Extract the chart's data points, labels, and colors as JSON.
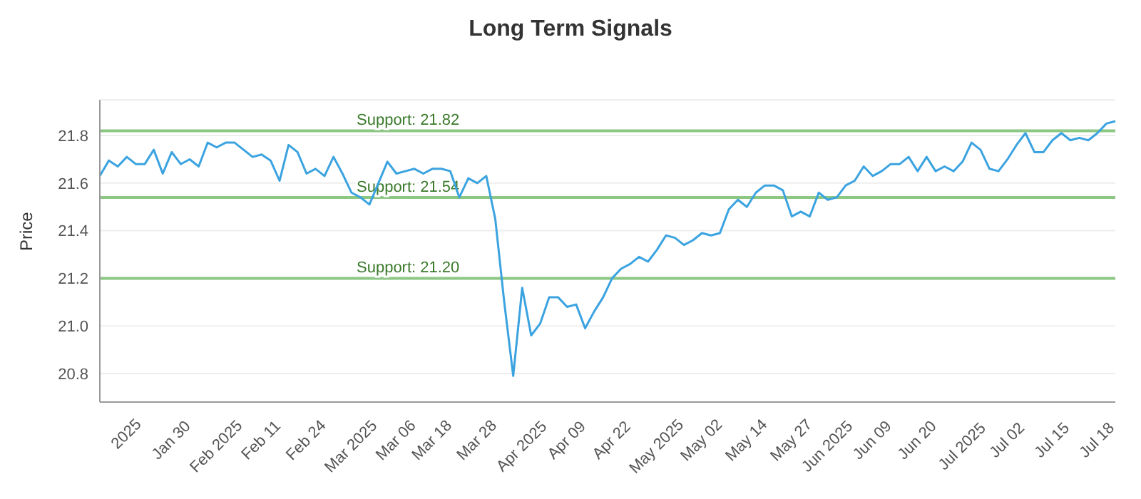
{
  "chart_data": {
    "type": "line",
    "title": "Long Term Signals",
    "ylabel": "Price",
    "categories": [
      null,
      null,
      null,
      "2025",
      null,
      null,
      null,
      null,
      "Jan 30",
      null,
      null,
      null,
      null,
      "Feb 2025",
      null,
      null,
      null,
      null,
      "Feb 11",
      null,
      null,
      null,
      null,
      "Feb 24",
      null,
      null,
      null,
      null,
      "Mar 2025",
      null,
      null,
      null,
      null,
      "Mar 06",
      null,
      null,
      null,
      "Mar 18",
      null,
      null,
      null,
      null,
      "Mar 28",
      null,
      null,
      null,
      null,
      "Apr 2025",
      null,
      null,
      null,
      null,
      "Apr 09",
      null,
      null,
      null,
      null,
      "Apr 22",
      null,
      null,
      null,
      null,
      "May 2025",
      null,
      null,
      null,
      null,
      "May 02",
      null,
      null,
      null,
      null,
      "May 14",
      null,
      null,
      null,
      null,
      "May 27",
      null,
      null,
      null,
      "Jun 2025",
      null,
      null,
      null,
      null,
      "Jun 09",
      null,
      null,
      null,
      null,
      "Jun 20",
      null,
      null,
      null,
      null,
      "Jul 2025",
      null,
      null,
      null,
      null,
      "Jul 02",
      null,
      null,
      null,
      null,
      "Jul 15",
      null,
      null,
      null,
      null,
      "Jul 18",
      null,
      null
    ],
    "series": [
      {
        "color": "#3ba3e0",
        "values": [
          21.63,
          21.695,
          21.67,
          21.71,
          21.68,
          21.68,
          21.74,
          21.64,
          21.73,
          21.68,
          21.7,
          21.67,
          21.77,
          21.75,
          21.77,
          21.77,
          21.74,
          21.71,
          21.72,
          21.695,
          21.61,
          21.76,
          21.73,
          21.64,
          21.66,
          21.63,
          21.71,
          21.64,
          21.56,
          21.54,
          21.51,
          21.6,
          21.69,
          21.64,
          21.65,
          21.66,
          21.64,
          21.66,
          21.66,
          21.65,
          21.54,
          21.62,
          21.6,
          21.63,
          21.45,
          21.1,
          20.79,
          21.16,
          20.96,
          21.01,
          21.12,
          21.12,
          21.08,
          21.09,
          20.99,
          21.06,
          21.12,
          21.2,
          21.24,
          21.26,
          21.29,
          21.27,
          21.32,
          21.38,
          21.37,
          21.34,
          21.36,
          21.39,
          21.38,
          21.39,
          21.49,
          21.53,
          21.5,
          21.56,
          21.59,
          21.59,
          21.57,
          21.46,
          21.48,
          21.46,
          21.56,
          21.53,
          21.54,
          21.59,
          21.61,
          21.67,
          21.63,
          21.65,
          21.68,
          21.68,
          21.71,
          21.65,
          21.71,
          21.65,
          21.67,
          21.65,
          21.69,
          21.77,
          21.74,
          21.66,
          21.65,
          21.7,
          21.76,
          21.81,
          21.73,
          21.73,
          21.78,
          21.81,
          21.78,
          21.79,
          21.78,
          21.81,
          21.85,
          21.86
        ]
      }
    ],
    "ylim": [
      20.68,
      21.95
    ],
    "yticks": [
      20.8,
      {
        "value": 21,
        "label": "21.0"
      },
      21.2,
      21.4,
      21.6,
      21.8
    ],
    "grid": "y",
    "legend": false,
    "marker": "none",
    "line_style": "solid",
    "ref_lines": [
      {
        "axis": "y",
        "value": 21.82,
        "label": "Support: 21.82",
        "color": "#8cc784"
      },
      {
        "axis": "y",
        "value": 21.54,
        "label": "Support: 21.54",
        "color": "#8cc784"
      },
      {
        "axis": "y",
        "value": 21.2,
        "label": "Support: 21.20",
        "color": "#8cc784"
      }
    ]
  }
}
